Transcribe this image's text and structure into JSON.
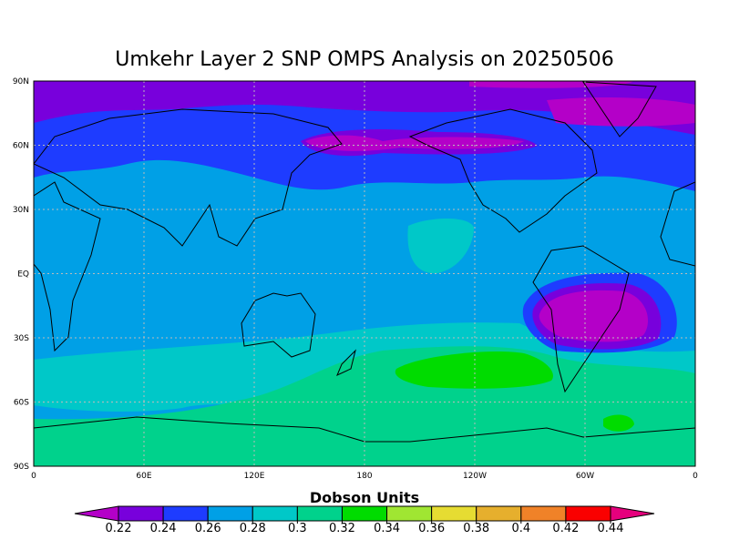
{
  "title": "Umkehr Layer 2 SNP OMPS Analysis on 20250506",
  "map": {
    "lon_labels": [
      "0",
      "60E",
      "120E",
      "180",
      "120W",
      "60W",
      "0"
    ],
    "lat_labels": [
      "90N",
      "60N",
      "30N",
      "EQ",
      "30S",
      "60S",
      "90S"
    ]
  },
  "colorbar": {
    "label": "Dobson Units",
    "levels": [
      0.22,
      0.24,
      0.26,
      0.28,
      0.3,
      0.32,
      0.34,
      0.36,
      0.38,
      0.4,
      0.42,
      0.44
    ],
    "colors": [
      "#b400c8",
      "#7800dc",
      "#1e3cff",
      "#00a0e6",
      "#00c8c8",
      "#00d28c",
      "#00dc00",
      "#a0e632",
      "#e6dc32",
      "#e6af2d",
      "#f08228",
      "#fa0000",
      "#e6007d"
    ]
  }
}
